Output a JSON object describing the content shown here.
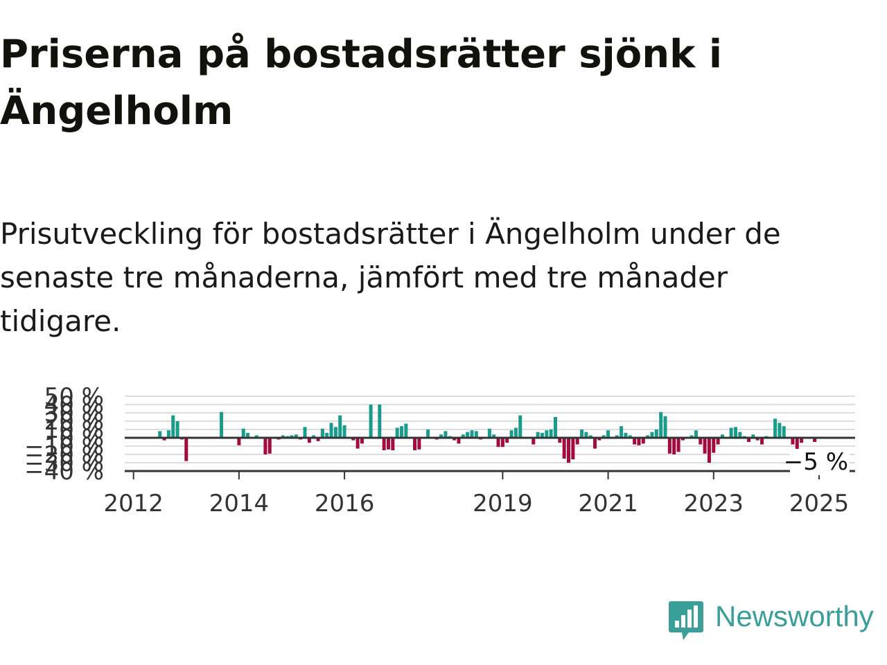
{
  "title": "Priserna på bostadsrätter sjönk i Ängelholm",
  "subtitle": "Prisutveckling för bostadsrätter i Ängelholm under de senaste tre månaderna, jämfört med tre månader tidigare.",
  "brand": {
    "name": "Newsworthy",
    "color": "#3a9f98",
    "icon": "bar-chart-logo-icon"
  },
  "colors": {
    "positive": "#1a9c8c",
    "negative": "#a30b3d",
    "axis": "#333333",
    "grid": "#dddddd"
  },
  "chart_data": {
    "type": "bar",
    "x_unit": "month",
    "y_unit": "%",
    "ylim": [
      -40,
      50
    ],
    "y_ticks": [
      -40,
      -30,
      -20,
      -10,
      0,
      10,
      20,
      30,
      40,
      50
    ],
    "y_tick_labels": [
      "−40 %",
      "−30 %",
      "−20 %",
      "−10 %",
      "0 %",
      "10 %",
      "20 %",
      "30 %",
      "40 %",
      "50 %"
    ],
    "x_ticks": [
      "2012",
      "2014",
      "2016",
      "2019",
      "2021",
      "2023",
      "2025"
    ],
    "x_tick_positions": [
      "2012-01",
      "2014-01",
      "2016-01",
      "2019-01",
      "2021-01",
      "2023-01",
      "2025-01"
    ],
    "grid": true,
    "last_value_label": "−5 %",
    "values": [
      {
        "x": "2012-07",
        "y": 8
      },
      {
        "x": "2012-08",
        "y": -3
      },
      {
        "x": "2012-09",
        "y": 9
      },
      {
        "x": "2012-10",
        "y": 27
      },
      {
        "x": "2012-11",
        "y": 20
      },
      {
        "x": "2012-12",
        "y": -2
      },
      {
        "x": "2013-01",
        "y": -28
      },
      {
        "x": "2013-09",
        "y": 31
      },
      {
        "x": "2014-01",
        "y": -9
      },
      {
        "x": "2014-02",
        "y": 11
      },
      {
        "x": "2014-03",
        "y": 6
      },
      {
        "x": "2014-05",
        "y": 3
      },
      {
        "x": "2014-07",
        "y": -20
      },
      {
        "x": "2014-08",
        "y": -19
      },
      {
        "x": "2014-10",
        "y": -2
      },
      {
        "x": "2014-11",
        "y": 3
      },
      {
        "x": "2014-12",
        "y": 2
      },
      {
        "x": "2015-01",
        "y": 3
      },
      {
        "x": "2015-02",
        "y": 4
      },
      {
        "x": "2015-03",
        "y": -2
      },
      {
        "x": "2015-04",
        "y": 13
      },
      {
        "x": "2015-05",
        "y": -6
      },
      {
        "x": "2015-06",
        "y": 3
      },
      {
        "x": "2015-07",
        "y": -4
      },
      {
        "x": "2015-08",
        "y": 11
      },
      {
        "x": "2015-09",
        "y": 6
      },
      {
        "x": "2015-10",
        "y": 18
      },
      {
        "x": "2015-11",
        "y": 13
      },
      {
        "x": "2015-12",
        "y": 27
      },
      {
        "x": "2016-01",
        "y": 15
      },
      {
        "x": "2016-03",
        "y": -3
      },
      {
        "x": "2016-04",
        "y": -13
      },
      {
        "x": "2016-05",
        "y": -7
      },
      {
        "x": "2016-07",
        "y": 40
      },
      {
        "x": "2016-09",
        "y": 40
      },
      {
        "x": "2016-10",
        "y": -15
      },
      {
        "x": "2016-11",
        "y": -14
      },
      {
        "x": "2016-12",
        "y": -15
      },
      {
        "x": "2017-01",
        "y": 12
      },
      {
        "x": "2017-02",
        "y": 14
      },
      {
        "x": "2017-03",
        "y": 17
      },
      {
        "x": "2017-05",
        "y": -15
      },
      {
        "x": "2017-06",
        "y": -14
      },
      {
        "x": "2017-08",
        "y": 10
      },
      {
        "x": "2017-10",
        "y": -2
      },
      {
        "x": "2017-11",
        "y": 4
      },
      {
        "x": "2017-12",
        "y": 8
      },
      {
        "x": "2018-01",
        "y": 2
      },
      {
        "x": "2018-02",
        "y": -3
      },
      {
        "x": "2018-03",
        "y": -7
      },
      {
        "x": "2018-04",
        "y": 4
      },
      {
        "x": "2018-05",
        "y": 7
      },
      {
        "x": "2018-06",
        "y": 9
      },
      {
        "x": "2018-07",
        "y": 8
      },
      {
        "x": "2018-08",
        "y": -2
      },
      {
        "x": "2018-10",
        "y": 11
      },
      {
        "x": "2018-11",
        "y": 4
      },
      {
        "x": "2018-12",
        "y": -11
      },
      {
        "x": "2019-01",
        "y": -11
      },
      {
        "x": "2019-02",
        "y": -6
      },
      {
        "x": "2019-03",
        "y": 9
      },
      {
        "x": "2019-04",
        "y": 12
      },
      {
        "x": "2019-05",
        "y": 27
      },
      {
        "x": "2019-08",
        "y": -8
      },
      {
        "x": "2019-09",
        "y": 7
      },
      {
        "x": "2019-10",
        "y": 6
      },
      {
        "x": "2019-11",
        "y": 9
      },
      {
        "x": "2019-12",
        "y": 10
      },
      {
        "x": "2020-01",
        "y": 25
      },
      {
        "x": "2020-02",
        "y": -6
      },
      {
        "x": "2020-03",
        "y": -25
      },
      {
        "x": "2020-04",
        "y": -30
      },
      {
        "x": "2020-05",
        "y": -26
      },
      {
        "x": "2020-06",
        "y": -8
      },
      {
        "x": "2020-07",
        "y": 10
      },
      {
        "x": "2020-08",
        "y": 7
      },
      {
        "x": "2020-09",
        "y": 3
      },
      {
        "x": "2020-10",
        "y": -13
      },
      {
        "x": "2020-11",
        "y": -3
      },
      {
        "x": "2020-12",
        "y": 3
      },
      {
        "x": "2021-01",
        "y": 9
      },
      {
        "x": "2021-03",
        "y": 3
      },
      {
        "x": "2021-04",
        "y": 14
      },
      {
        "x": "2021-05",
        "y": 6
      },
      {
        "x": "2021-06",
        "y": 3
      },
      {
        "x": "2021-07",
        "y": -8
      },
      {
        "x": "2021-08",
        "y": -9
      },
      {
        "x": "2021-09",
        "y": -7
      },
      {
        "x": "2021-10",
        "y": 3
      },
      {
        "x": "2021-11",
        "y": 7
      },
      {
        "x": "2021-12",
        "y": 10
      },
      {
        "x": "2022-01",
        "y": 31
      },
      {
        "x": "2022-02",
        "y": 26
      },
      {
        "x": "2022-03",
        "y": -19
      },
      {
        "x": "2022-04",
        "y": -20
      },
      {
        "x": "2022-05",
        "y": -17
      },
      {
        "x": "2022-06",
        "y": -3
      },
      {
        "x": "2022-08",
        "y": 3
      },
      {
        "x": "2022-09",
        "y": 9
      },
      {
        "x": "2022-10",
        "y": -8
      },
      {
        "x": "2022-11",
        "y": -19
      },
      {
        "x": "2022-12",
        "y": -30
      },
      {
        "x": "2023-01",
        "y": -18
      },
      {
        "x": "2023-02",
        "y": -8
      },
      {
        "x": "2023-03",
        "y": 4
      },
      {
        "x": "2023-05",
        "y": 12
      },
      {
        "x": "2023-06",
        "y": 13
      },
      {
        "x": "2023-07",
        "y": 7
      },
      {
        "x": "2023-08",
        "y": 2
      },
      {
        "x": "2023-09",
        "y": -5
      },
      {
        "x": "2023-10",
        "y": 4
      },
      {
        "x": "2023-11",
        "y": -3
      },
      {
        "x": "2023-12",
        "y": -8
      },
      {
        "x": "2024-01",
        "y": 2
      },
      {
        "x": "2024-03",
        "y": 23
      },
      {
        "x": "2024-04",
        "y": 18
      },
      {
        "x": "2024-05",
        "y": 14
      },
      {
        "x": "2024-07",
        "y": -8
      },
      {
        "x": "2024-08",
        "y": -14
      },
      {
        "x": "2024-09",
        "y": -6
      },
      {
        "x": "2024-12",
        "y": -5
      }
    ]
  }
}
